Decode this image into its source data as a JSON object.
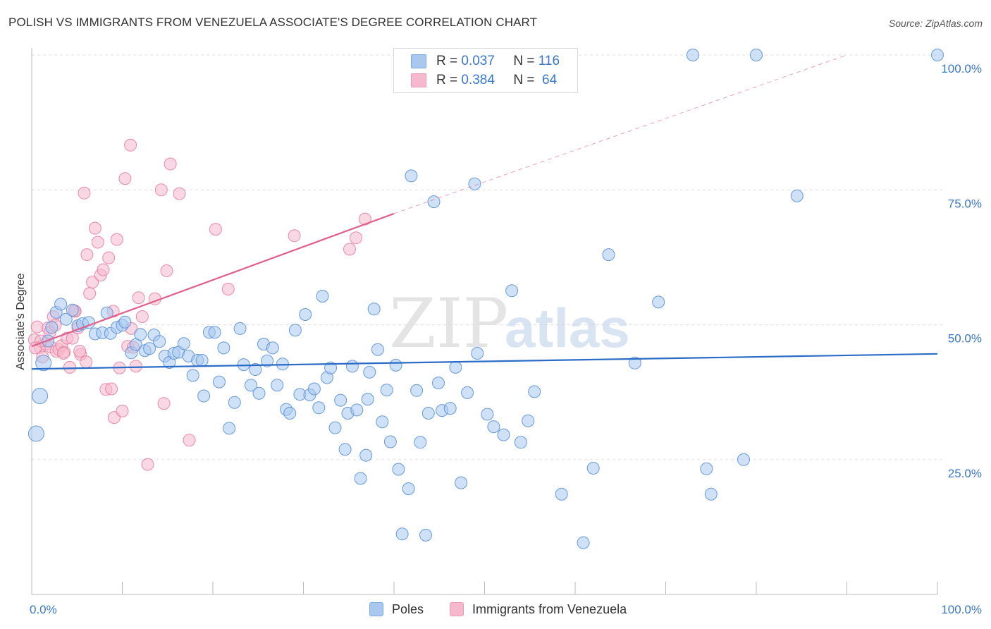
{
  "header": {
    "title": "POLISH VS IMMIGRANTS FROM VENEZUELA ASSOCIATE'S DEGREE CORRELATION CHART",
    "source": "Source: ZipAtlas.com"
  },
  "watermark": {
    "zip": "ZIP",
    "atlas": "atlas"
  },
  "legend": {
    "rows": [
      {
        "r_label": "R = ",
        "r_value": "0.037",
        "n_label": "N = ",
        "n_value": "116",
        "color": "#a8c8f0"
      },
      {
        "r_label": "R = ",
        "r_value": "0.384",
        "n_label": "N = ",
        "n_value": " 64",
        "color": "#f5b8cc"
      }
    ]
  },
  "colors": {
    "poles_fill": "#a8c8f0",
    "poles_stroke": "#5a8fd8",
    "poles_line": "#2a6cc8",
    "venezuela_fill": "#f5b8cc",
    "venezuela_stroke": "#e87fa0",
    "venezuela_line": "#e0608a",
    "grid": "#dddddd",
    "tick_label": "#3a78c8"
  },
  "chart_data": {
    "type": "scatter",
    "title": "POLISH VS IMMIGRANTS FROM VENEZUELA ASSOCIATE'S DEGREE CORRELATION CHART",
    "xlabel": "",
    "ylabel": "Associate's Degree",
    "xlim": [
      0,
      100
    ],
    "ylim": [
      0,
      100
    ],
    "x_tick_labels": [
      "0.0%",
      "100.0%"
    ],
    "y_tick_labels": [
      "25.0%",
      "50.0%",
      "75.0%",
      "100.0%"
    ],
    "y_ticks": [
      25,
      50,
      75,
      100
    ],
    "grid": true,
    "legend_position": "top-center",
    "series": [
      {
        "name": "Poles",
        "r": 0.037,
        "n": 116,
        "trend": {
          "x": [
            0,
            100
          ],
          "y": [
            41.8,
            44.6
          ],
          "dashed_extension": false
        },
        "points": [
          [
            0.5,
            29.8
          ],
          [
            0.9,
            36.8
          ],
          [
            1.3,
            42.9
          ],
          [
            1.8,
            47.0
          ],
          [
            2.2,
            49.5
          ],
          [
            2.7,
            52.3
          ],
          [
            3.2,
            53.8
          ],
          [
            3.8,
            51.0
          ],
          [
            4.5,
            52.7
          ],
          [
            5.1,
            49.8
          ],
          [
            5.6,
            50.2
          ],
          [
            6.3,
            50.4
          ],
          [
            7.0,
            48.3
          ],
          [
            7.8,
            48.5
          ],
          [
            8.3,
            52.2
          ],
          [
            8.7,
            48.4
          ],
          [
            9.4,
            49.5
          ],
          [
            10.0,
            49.9
          ],
          [
            10.3,
            50.5
          ],
          [
            11.0,
            44.8
          ],
          [
            11.5,
            46.3
          ],
          [
            12.0,
            48.2
          ],
          [
            12.5,
            45.2
          ],
          [
            13.0,
            45.6
          ],
          [
            13.5,
            48.1
          ],
          [
            14.1,
            46.9
          ],
          [
            14.7,
            44.2
          ],
          [
            15.2,
            43.0
          ],
          [
            15.7,
            44.7
          ],
          [
            16.2,
            44.9
          ],
          [
            16.8,
            46.5
          ],
          [
            17.3,
            44.2
          ],
          [
            17.8,
            40.6
          ],
          [
            18.3,
            43.4
          ],
          [
            18.8,
            43.4
          ],
          [
            19.0,
            36.8
          ],
          [
            19.6,
            48.6
          ],
          [
            20.2,
            48.6
          ],
          [
            20.7,
            39.4
          ],
          [
            21.2,
            45.7
          ],
          [
            21.8,
            30.8
          ],
          [
            22.4,
            35.6
          ],
          [
            23.0,
            49.3
          ],
          [
            23.4,
            42.6
          ],
          [
            24.2,
            38.8
          ],
          [
            24.7,
            41.7
          ],
          [
            25.1,
            37.3
          ],
          [
            25.6,
            46.4
          ],
          [
            26.0,
            43.3
          ],
          [
            26.6,
            45.7
          ],
          [
            27.1,
            38.8
          ],
          [
            27.7,
            42.7
          ],
          [
            28.1,
            34.3
          ],
          [
            28.5,
            33.6
          ],
          [
            29.1,
            49.0
          ],
          [
            29.6,
            37.1
          ],
          [
            30.2,
            51.9
          ],
          [
            30.7,
            37.0
          ],
          [
            31.2,
            38.1
          ],
          [
            31.7,
            34.6
          ],
          [
            32.1,
            55.3
          ],
          [
            32.6,
            40.2
          ],
          [
            33.0,
            42.0
          ],
          [
            33.5,
            30.9
          ],
          [
            34.1,
            36.0
          ],
          [
            34.6,
            26.9
          ],
          [
            34.9,
            33.6
          ],
          [
            35.4,
            42.3
          ],
          [
            35.9,
            34.2
          ],
          [
            36.3,
            21.5
          ],
          [
            36.9,
            25.8
          ],
          [
            37.3,
            41.2
          ],
          [
            37.8,
            52.9
          ],
          [
            38.2,
            45.4
          ],
          [
            38.7,
            32.0
          ],
          [
            39.2,
            37.9
          ],
          [
            39.6,
            28.3
          ],
          [
            40.2,
            42.5
          ],
          [
            40.5,
            23.2
          ],
          [
            40.9,
            11.2
          ],
          [
            41.6,
            19.6
          ],
          [
            41.9,
            77.6
          ],
          [
            42.5,
            37.8
          ],
          [
            42.9,
            28.2
          ],
          [
            43.5,
            11.0
          ],
          [
            43.8,
            33.6
          ],
          [
            44.4,
            72.8
          ],
          [
            44.9,
            39.2
          ],
          [
            45.3,
            34.1
          ],
          [
            46.2,
            34.5
          ],
          [
            46.8,
            42.1
          ],
          [
            47.4,
            20.7
          ],
          [
            48.1,
            37.4
          ],
          [
            48.9,
            76.1
          ],
          [
            49.2,
            44.7
          ],
          [
            50.3,
            33.4
          ],
          [
            51.0,
            31.1
          ],
          [
            52.1,
            29.6
          ],
          [
            53.0,
            56.3
          ],
          [
            54.0,
            28.2
          ],
          [
            54.8,
            32.2
          ],
          [
            55.5,
            37.6
          ],
          [
            58.5,
            18.6
          ],
          [
            60.9,
            9.6
          ],
          [
            62.0,
            23.4
          ],
          [
            63.7,
            63.0
          ],
          [
            66.6,
            42.9
          ],
          [
            69.2,
            54.2
          ],
          [
            74.5,
            23.3
          ],
          [
            75.0,
            18.6
          ],
          [
            73.0,
            100.0
          ],
          [
            78.6,
            25.0
          ],
          [
            80.0,
            100.0
          ],
          [
            84.5,
            73.9
          ],
          [
            100.0,
            100.0
          ],
          [
            37.1,
            36.2
          ]
        ]
      },
      {
        "name": "Immigrants from Venezuela",
        "r": 0.384,
        "n": 64,
        "trend": {
          "x": [
            0,
            40
          ],
          "y": [
            46.0,
            70.6
          ],
          "dashed_extension": {
            "x": [
              40,
              90
            ],
            "y": [
              70.6,
              100.0
            ]
          }
        },
        "points": [
          [
            0.3,
            47.2
          ],
          [
            0.6,
            49.6
          ],
          [
            0.9,
            45.8
          ],
          [
            1.2,
            44.0
          ],
          [
            1.5,
            46.4
          ],
          [
            1.8,
            49.4
          ],
          [
            2.1,
            45.9
          ],
          [
            2.4,
            51.5
          ],
          [
            2.7,
            45.1
          ],
          [
            3.0,
            45.4
          ],
          [
            3.3,
            46.1
          ],
          [
            3.6,
            44.9
          ],
          [
            3.9,
            47.5
          ],
          [
            4.2,
            42.1
          ],
          [
            4.5,
            47.5
          ],
          [
            4.8,
            52.5
          ],
          [
            5.1,
            49.4
          ],
          [
            5.4,
            44.5
          ],
          [
            5.8,
            74.4
          ],
          [
            6.1,
            63.0
          ],
          [
            6.4,
            55.8
          ],
          [
            6.7,
            57.9
          ],
          [
            7.0,
            67.9
          ],
          [
            7.3,
            65.3
          ],
          [
            7.6,
            59.2
          ],
          [
            7.9,
            60.2
          ],
          [
            8.2,
            38.0
          ],
          [
            8.5,
            62.4
          ],
          [
            8.8,
            38.1
          ],
          [
            9.1,
            32.8
          ],
          [
            9.4,
            65.8
          ],
          [
            9.7,
            42.0
          ],
          [
            10.0,
            34.0
          ],
          [
            10.3,
            77.1
          ],
          [
            10.6,
            46.0
          ],
          [
            10.9,
            83.3
          ],
          [
            11.2,
            45.8
          ],
          [
            11.5,
            42.3
          ],
          [
            11.8,
            55.0
          ],
          [
            12.2,
            51.5
          ],
          [
            12.8,
            24.1
          ],
          [
            13.6,
            54.8
          ],
          [
            14.3,
            75.0
          ],
          [
            14.6,
            35.4
          ],
          [
            14.9,
            60.0
          ],
          [
            15.3,
            79.8
          ],
          [
            16.3,
            74.3
          ],
          [
            17.4,
            28.6
          ],
          [
            20.3,
            67.7
          ],
          [
            21.7,
            56.6
          ],
          [
            29.0,
            66.5
          ],
          [
            35.1,
            64.0
          ],
          [
            35.8,
            66.1
          ],
          [
            36.8,
            69.6
          ],
          [
            1.0,
            47.0
          ],
          [
            2.0,
            48.6
          ],
          [
            3.5,
            44.7
          ],
          [
            4.7,
            52.6
          ],
          [
            5.3,
            45.1
          ],
          [
            6.0,
            43.1
          ],
          [
            9.0,
            52.5
          ],
          [
            11.0,
            49.3
          ],
          [
            2.6,
            49.9
          ],
          [
            0.4,
            45.7
          ]
        ]
      }
    ]
  },
  "bottom_legend": {
    "poles_label": "Poles",
    "venezuela_label": "Immigrants from Venezuela"
  }
}
